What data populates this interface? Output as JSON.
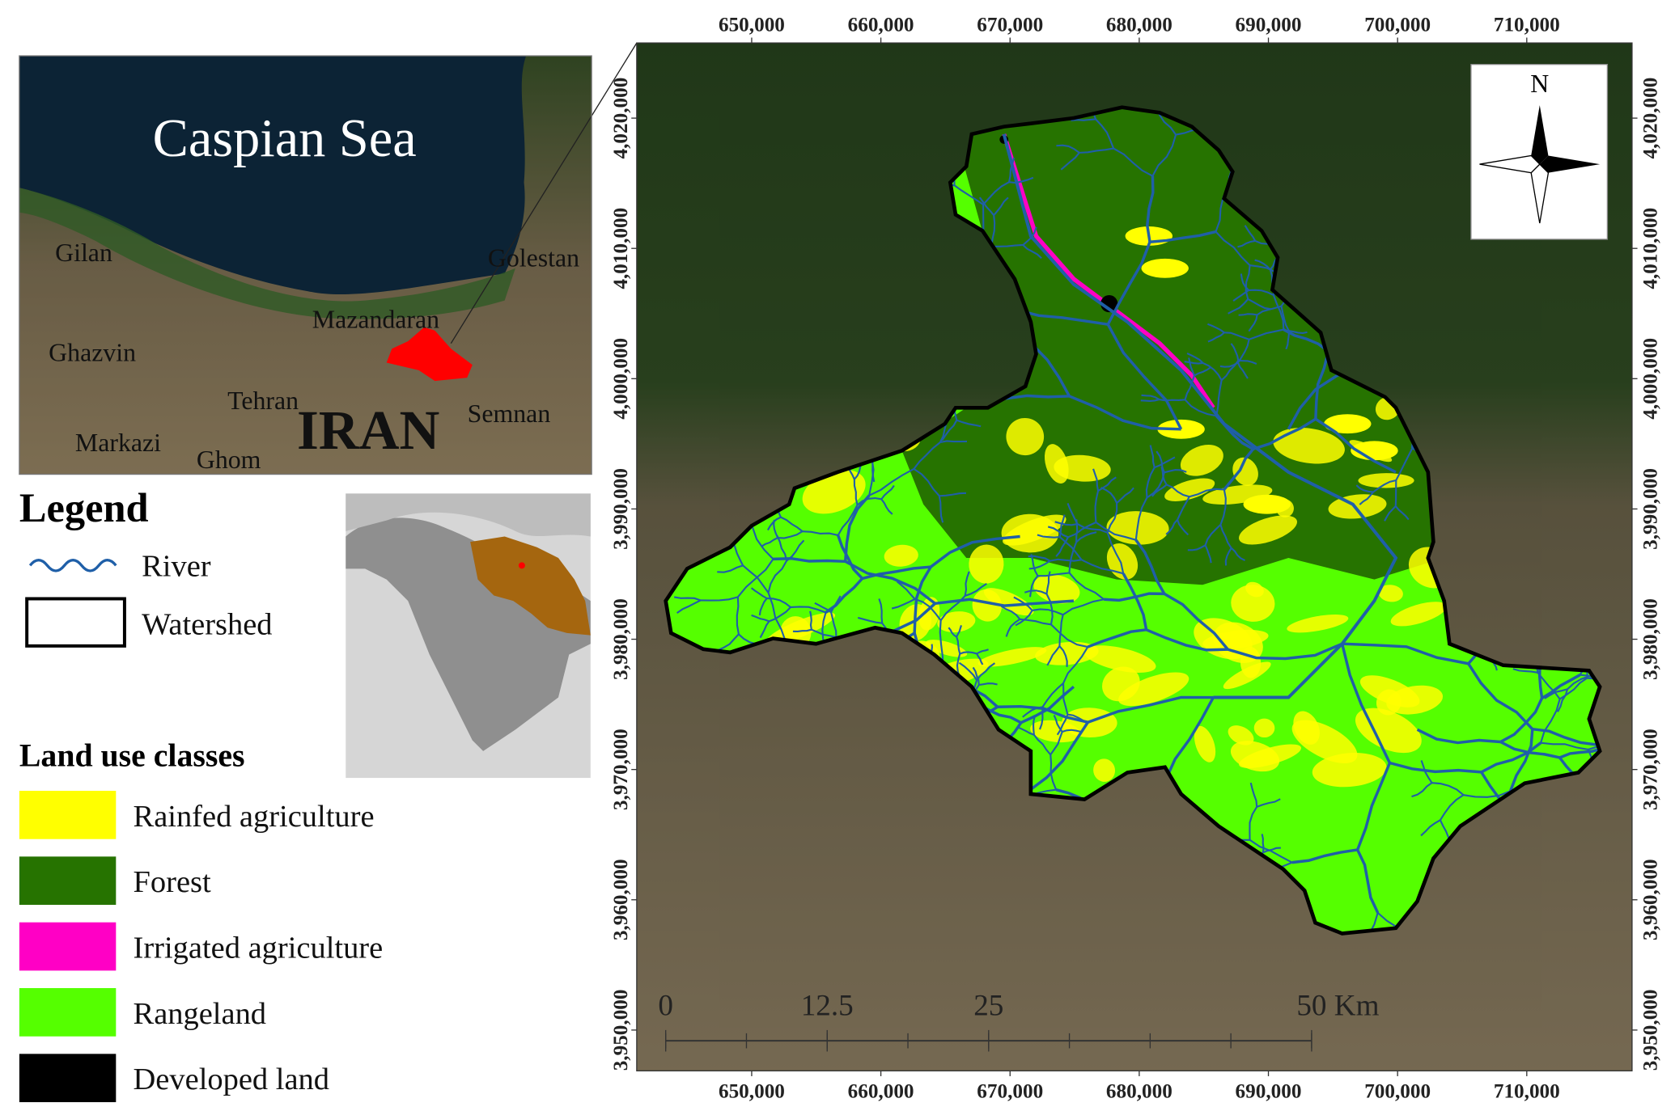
{
  "inset_map": {
    "labels": [
      "Caspian Sea",
      "Gilan",
      "Golestan",
      "Mazandaran",
      "Ghazvin",
      "Tehran",
      "IRAN",
      "Semnan",
      "Markazi",
      "Ghom"
    ]
  },
  "legend": {
    "title": "Legend",
    "items": [
      "River",
      "Watershed"
    ]
  },
  "land_use": {
    "title": "Land use classes",
    "classes": [
      {
        "name": "Rainfed agriculture",
        "color": "#ffff00"
      },
      {
        "name": "Forest",
        "color": "#267300"
      },
      {
        "name": "Irrigated agriculture",
        "color": "#ff00c5"
      },
      {
        "name": "Rangeland",
        "color": "#55ff00"
      },
      {
        "name": "Developed land",
        "color": "#000000"
      }
    ]
  },
  "map": {
    "xlim": [
      641100,
      718150
    ],
    "ylim": [
      3946870,
      4025770
    ],
    "xticks": [
      {
        "value": 650000,
        "label": "650,000"
      },
      {
        "value": 660000,
        "label": "660,000"
      },
      {
        "value": 670000,
        "label": "670,000"
      },
      {
        "value": 680000,
        "label": "680,000"
      },
      {
        "value": 690000,
        "label": "690,000"
      },
      {
        "value": 700000,
        "label": "700,000"
      },
      {
        "value": 710000,
        "label": "710,000"
      }
    ],
    "yticks": [
      {
        "value": 3950000,
        "label": "3,950,000"
      },
      {
        "value": 3960000,
        "label": "3,960,000"
      },
      {
        "value": 3970000,
        "label": "3,970,000"
      },
      {
        "value": 3980000,
        "label": "3,980,000"
      },
      {
        "value": 3990000,
        "label": "3,990,000"
      },
      {
        "value": 4000000,
        "label": "4,000,000"
      },
      {
        "value": 4010000,
        "label": "4,010,000"
      },
      {
        "value": 4020000,
        "label": "4,020,000"
      }
    ],
    "north": "N",
    "scale_bar": {
      "ticks": [
        0,
        12.5,
        25,
        {
          "value": 50,
          "label": "50 Km"
        }
      ]
    }
  }
}
